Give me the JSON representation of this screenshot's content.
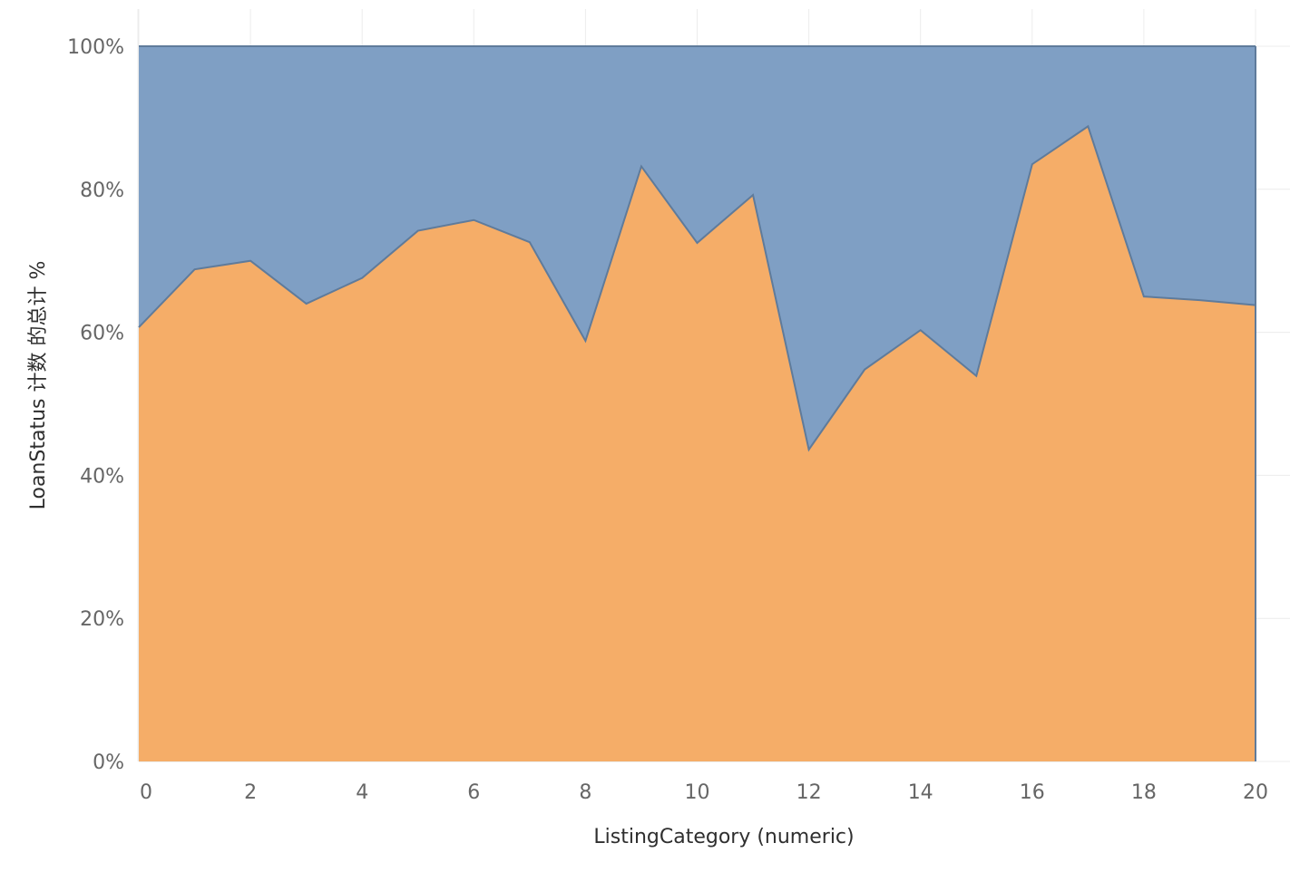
{
  "chart_data": {
    "type": "area",
    "stacked": true,
    "normalized_percent": true,
    "xlabel": "ListingCategory (numeric)",
    "ylabel": "LoanStatus 计数 的总计 %",
    "x": [
      0,
      1,
      2,
      3,
      4,
      5,
      6,
      7,
      8,
      9,
      10,
      11,
      12,
      13,
      14,
      15,
      16,
      17,
      18,
      19,
      20
    ],
    "x_ticks": [
      "0",
      "2",
      "4",
      "6",
      "8",
      "10",
      "12",
      "14",
      "16",
      "18",
      "20"
    ],
    "y_ticks": [
      "0%",
      "20%",
      "40%",
      "60%",
      "80%",
      "100%"
    ],
    "xlim": [
      0,
      20
    ],
    "ylim": [
      0,
      100
    ],
    "grid": true,
    "colors": {
      "lower": "#f5ad68",
      "upper": "#7f9fc4",
      "boundary": "#5f7b9b"
    },
    "series": [
      {
        "values": [
          60.7,
          68.8,
          70.0,
          64.0,
          67.6,
          74.2,
          75.7,
          72.6,
          58.8,
          83.2,
          72.5,
          79.2,
          43.6,
          54.8,
          60.3,
          53.9,
          83.5,
          88.8,
          65.0,
          64.5,
          63.8
        ]
      },
      {
        "values": [
          39.3,
          31.2,
          30.0,
          36.0,
          32.4,
          25.8,
          24.3,
          27.4,
          41.2,
          16.8,
          27.5,
          20.8,
          56.4,
          45.2,
          39.7,
          46.1,
          16.5,
          11.2,
          35.0,
          35.5,
          36.2
        ]
      }
    ]
  }
}
